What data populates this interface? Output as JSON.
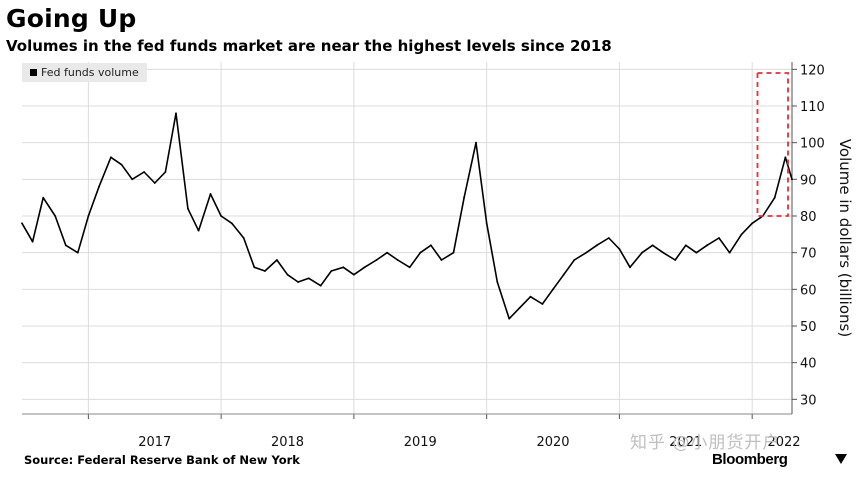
{
  "header": {
    "title": "Going Up",
    "subtitle": "Volumes in the fed funds market are near the highest levels since 2018"
  },
  "legend": {
    "label": "Fed funds volume"
  },
  "footer": {
    "source": "Source: Federal Reserve Bank of New York",
    "watermark": "知乎 @小朋货开户",
    "brand": "Bloomberg"
  },
  "colors": {
    "line": "#000000",
    "grid": "#dcdcdc",
    "highlight": "#e0303a"
  },
  "chart_data": {
    "type": "line",
    "ylabel": "Volume in dollars (billions)",
    "xlabel": "",
    "ylim": [
      26,
      122
    ],
    "xlim": [
      2016.5,
      2022.3
    ],
    "x_ticks": [
      "2017",
      "2018",
      "2019",
      "2020",
      "2021",
      "2022"
    ],
    "y_ticks": [
      30,
      40,
      50,
      60,
      70,
      80,
      90,
      100,
      110,
      120
    ],
    "grid": true,
    "legend_position": "top-left",
    "series": [
      {
        "name": "Fed funds volume",
        "x": [
          2016.5,
          2016.58,
          2016.66,
          2016.75,
          2016.83,
          2016.92,
          2017.0,
          2017.08,
          2017.17,
          2017.25,
          2017.33,
          2017.42,
          2017.5,
          2017.58,
          2017.66,
          2017.75,
          2017.83,
          2017.92,
          2018.0,
          2018.08,
          2018.17,
          2018.25,
          2018.33,
          2018.42,
          2018.5,
          2018.58,
          2018.66,
          2018.75,
          2018.83,
          2018.92,
          2019.0,
          2019.08,
          2019.17,
          2019.25,
          2019.33,
          2019.42,
          2019.5,
          2019.58,
          2019.66,
          2019.75,
          2019.83,
          2019.92,
          2020.0,
          2020.08,
          2020.17,
          2020.25,
          2020.33,
          2020.42,
          2020.5,
          2020.58,
          2020.66,
          2020.75,
          2020.83,
          2020.92,
          2021.0,
          2021.08,
          2021.17,
          2021.25,
          2021.33,
          2021.42,
          2021.5,
          2021.58,
          2021.66,
          2021.75,
          2021.83,
          2021.92,
          2022.0,
          2022.08,
          2022.17,
          2022.25,
          2022.3
        ],
        "values": [
          78,
          73,
          85,
          80,
          72,
          70,
          80,
          88,
          96,
          94,
          90,
          92,
          89,
          92,
          108,
          82,
          76,
          86,
          80,
          78,
          74,
          66,
          65,
          68,
          64,
          62,
          63,
          61,
          65,
          66,
          64,
          66,
          68,
          70,
          68,
          66,
          70,
          72,
          68,
          70,
          85,
          100,
          78,
          62,
          52,
          55,
          58,
          56,
          60,
          64,
          68,
          70,
          72,
          74,
          71,
          66,
          70,
          72,
          70,
          68,
          72,
          70,
          72,
          74,
          70,
          75,
          78,
          80,
          85,
          96,
          90
        ]
      }
    ],
    "highlight_box": {
      "x_range": [
        2022.04,
        2022.3
      ],
      "y_range": [
        80,
        119
      ]
    }
  }
}
